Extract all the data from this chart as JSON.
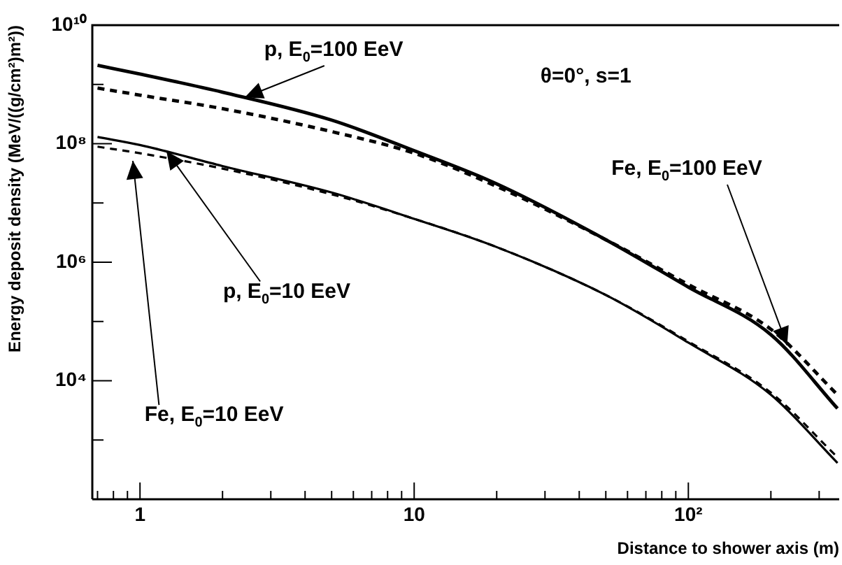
{
  "chart_data": {
    "type": "line",
    "xlabel": "Distance to shower axis (m)",
    "ylabel": "Energy deposit density (MeV/((g/cm²)m²))",
    "annotations": [
      "θ=0°, s=1",
      {
        "text": "p, E$_{0}$=100 EeV",
        "x": 2.4,
        "y": 600000000
      },
      {
        "text": "Fe, E$_{0}$=100 EeV",
        "x": 229,
        "y": 40000
      },
      {
        "text": "p, E$_{0}$=10 EeV",
        "x": 1.25,
        "y": 76000000
      },
      "Fe, E$_{0}$=10 EeV"
    ],
    "log": "xy",
    "x": [
      0.7,
      1,
      2,
      5,
      10,
      20,
      50,
      100,
      200,
      350
    ],
    "xlim": [
      0.67,
      355
    ],
    "ylim": [
      100,
      10000000000
    ],
    "xticks": [
      {
        "value": 0.7,
        "label": null
      },
      {
        "value": 0.8,
        "label": null
      },
      {
        "value": 0.9,
        "label": null
      },
      1,
      {
        "value": 2,
        "label": null
      },
      {
        "value": 3,
        "label": null
      },
      {
        "value": 4,
        "label": null
      },
      {
        "value": 5,
        "label": null
      },
      {
        "value": 6,
        "label": null
      },
      {
        "value": 7,
        "label": null
      },
      {
        "value": 8,
        "label": null
      },
      {
        "value": 9,
        "label": null
      },
      10,
      {
        "value": 20,
        "label": null
      },
      {
        "value": 30,
        "label": null
      },
      {
        "value": 40,
        "label": null
      },
      {
        "value": 50,
        "label": null
      },
      {
        "value": 60,
        "label": null
      },
      {
        "value": 70,
        "label": null
      },
      {
        "value": 80,
        "label": null
      },
      {
        "value": 90,
        "label": null
      },
      {
        "value": 100,
        "label": "10²"
      },
      {
        "value": 200,
        "label": null
      },
      {
        "value": 300,
        "label": null
      }
    ],
    "yticks": [
      {
        "value": 100,
        "label": null
      },
      {
        "value": 1000,
        "label": null
      },
      {
        "value": 10000,
        "label": "10⁴"
      },
      {
        "value": 100000,
        "label": null
      },
      {
        "value": 1000000,
        "label": "10⁶"
      },
      {
        "value": 10000000,
        "label": null
      },
      {
        "value": 100000000,
        "label": "10⁸"
      },
      {
        "value": 1000000000,
        "label": null
      },
      {
        "value": 10000000000,
        "label": "10¹⁰"
      }
    ],
    "series": [
      {
        "color": "#000000",
        "line_style": "solid",
        "values": [
          2100000000,
          1500000000,
          740000000,
          250000000,
          76000000,
          21000000,
          2400000,
          380000,
          60000,
          3400
        ]
      },
      {
        "color": "#000000",
        "line_style": "dashed",
        "values": [
          870000000,
          660000000,
          390000000,
          160000000,
          69000000,
          19000000,
          2400000,
          420000,
          74000,
          5800
        ]
      },
      {
        "color": "#000000",
        "line_style": "solid",
        "values": [
          130000000,
          95000000,
          42000000,
          15000000,
          5400000,
          1800000,
          280000,
          44000,
          5800,
          410
        ]
      },
      {
        "color": "#000000",
        "line_style": "dashed",
        "values": [
          89000000,
          69000000,
          38000000,
          14000000,
          5400000,
          1800000,
          280000,
          46000,
          6300,
          510
        ]
      }
    ]
  }
}
